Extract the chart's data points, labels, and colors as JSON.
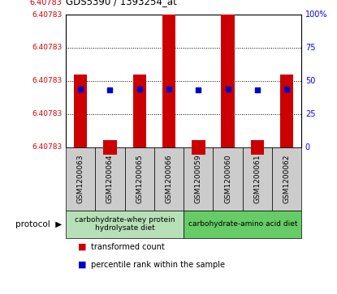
{
  "title": "GDS5390 / 1393254_at",
  "samples": [
    "GSM1200063",
    "GSM1200064",
    "GSM1200065",
    "GSM1200066",
    "GSM1200059",
    "GSM1200060",
    "GSM1200061",
    "GSM1200062"
  ],
  "bar_heights_pct": [
    55,
    5,
    55,
    100,
    5,
    100,
    5,
    55
  ],
  "percentile_ranks": [
    44,
    43,
    44,
    44,
    43,
    44,
    43,
    44
  ],
  "bar_color": "#cc0000",
  "percentile_color": "#0000cc",
  "ytick_positions": [
    0,
    25,
    50,
    75,
    100
  ],
  "ytick_labels_left": [
    "6.40783",
    "6.40783",
    "6.40783",
    "6.40783",
    "6.40783"
  ],
  "ytick_labels_right": [
    "0",
    "25",
    "50",
    "75",
    "100%"
  ],
  "protocol_groups": [
    {
      "label": "carbohydrate-whey protein\nhydrolysate diet",
      "start": 0,
      "end": 3,
      "color": "#b8e0b8"
    },
    {
      "label": "carbohydrate-amino acid diet",
      "start": 4,
      "end": 7,
      "color": "#66cc66"
    }
  ],
  "legend_items": [
    {
      "color": "#cc0000",
      "label": "transformed count"
    },
    {
      "color": "#0000cc",
      "label": "percentile rank within the sample"
    }
  ],
  "background_sample": "#cccccc",
  "title_red": "6.40783",
  "bar_width": 0.45
}
